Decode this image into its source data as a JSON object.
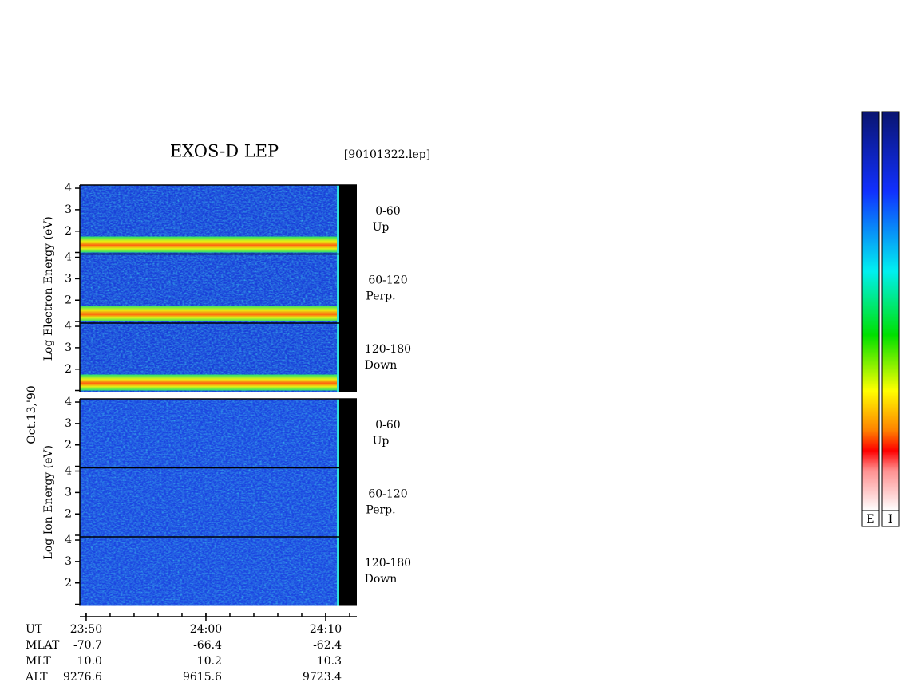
{
  "chart_data": {
    "type": "spectrogram",
    "title": "EXOS-D LEP",
    "file": "[90101322.lep]",
    "date": "Oct.13,'90",
    "ylim": [
      0.93,
      4.15
    ],
    "yticks": [
      2,
      3,
      4
    ],
    "xlim": [
      1429.47,
      1452.6
    ],
    "xticks": [
      {
        "value": 1430,
        "label": "23:50"
      },
      {
        "value": 1440,
        "label": "24:00"
      },
      {
        "value": 1450,
        "label": "24:10"
      }
    ],
    "x_label": "UT",
    "groups": [
      {
        "axis_label": "Log  Electron  Energy (eV)",
        "panels": [
          {
            "label": "0-60",
            "direction": "Up"
          },
          {
            "label": "60-120",
            "direction": "Perp."
          },
          {
            "label": "120-180",
            "direction": "Down"
          }
        ]
      },
      {
        "axis_label": "Log  Ion  Energy (eV)",
        "panels": [
          {
            "label": "0-60",
            "direction": "Up"
          },
          {
            "label": "60-120",
            "direction": "Perp."
          },
          {
            "label": "120-180",
            "direction": "Down"
          }
        ]
      }
    ],
    "orbit": [
      {
        "name": "MLAT",
        "values": [
          "-70.7",
          "-66.4",
          "-62.4"
        ]
      },
      {
        "name": "MLT",
        "values": [
          "10.0",
          "10.2",
          "10.3"
        ]
      },
      {
        "name": "ALT",
        "values": [
          "9276.6",
          "9615.6",
          "9723.4"
        ]
      }
    ],
    "colorbars": [
      "E",
      "I"
    ]
  }
}
